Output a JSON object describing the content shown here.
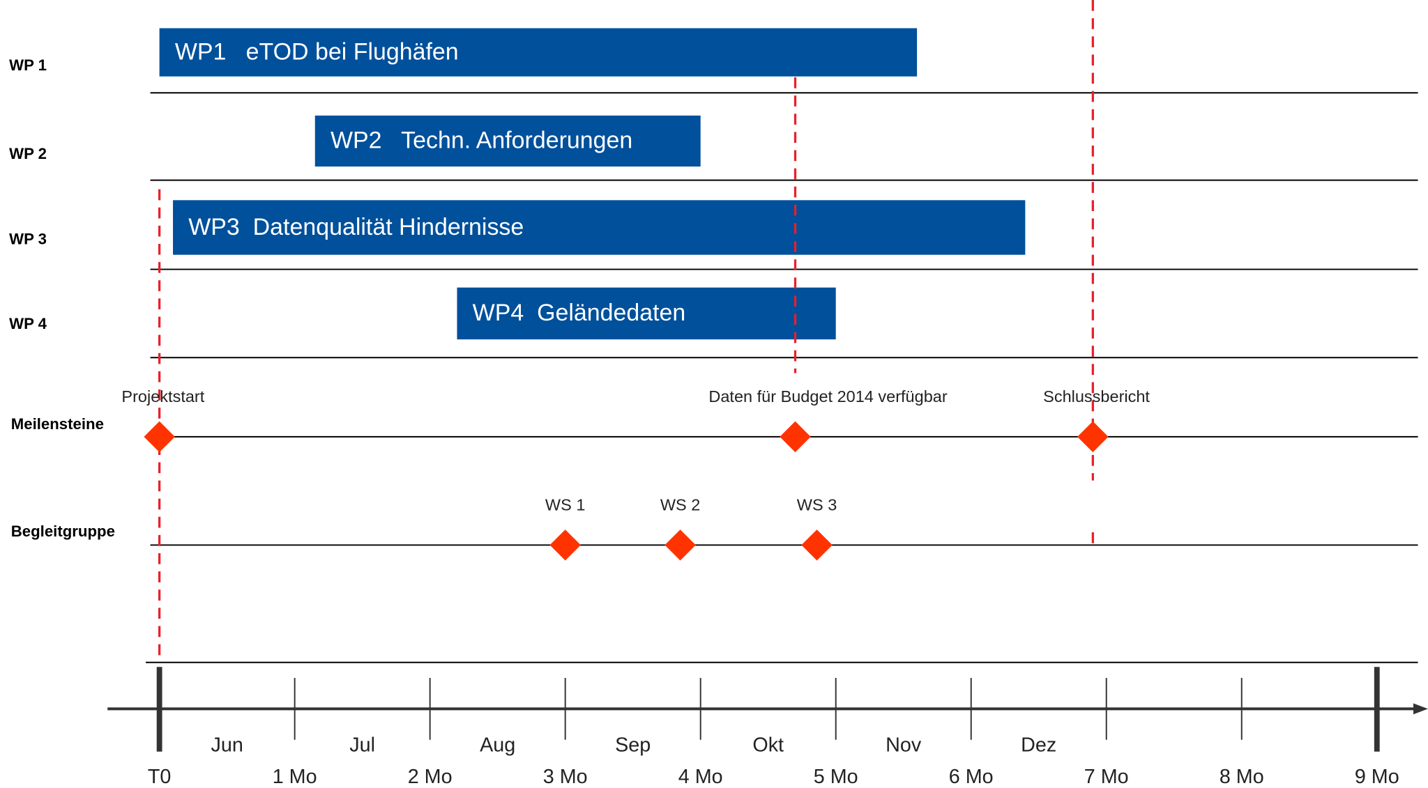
{
  "chart_data": {
    "type": "gantt",
    "xlim": [
      0,
      9
    ],
    "xticks": [
      {
        "value": 0,
        "label": "T0"
      },
      {
        "value": 1,
        "label": "1 Mo"
      },
      {
        "value": 2,
        "label": "2 Mo"
      },
      {
        "value": 3,
        "label": "3 Mo"
      },
      {
        "value": 4,
        "label": "4 Mo"
      },
      {
        "value": 5,
        "label": "5 Mo"
      },
      {
        "value": 6,
        "label": "6 Mo"
      },
      {
        "value": 7,
        "label": "7 Mo"
      },
      {
        "value": 8,
        "label": "8 Mo"
      },
      {
        "value": 9,
        "label": "9 Mo"
      }
    ],
    "months": [
      "Jun",
      "Jul",
      "Aug",
      "Sep",
      "Okt",
      "Nov",
      "Dez"
    ],
    "color": "#00509b",
    "marker_color": "#ff3300",
    "tasks": [
      {
        "row": "WP 1",
        "label": "WP1   eTOD bei Flughäfen",
        "start": 0,
        "end": 5.6
      },
      {
        "row": "WP 2",
        "label": "WP2   Techn. Anforderungen",
        "start": 1.15,
        "end": 4.0
      },
      {
        "row": "WP 3",
        "label": "WP3  Datenqualität Hindernisse",
        "start": 0.1,
        "end": 6.4
      },
      {
        "row": "WP 4",
        "label": "WP4  Geländedaten",
        "start": 2.2,
        "end": 5.0
      }
    ],
    "milestones": {
      "row": "Meilensteine",
      "items": [
        {
          "label": "Projektstart",
          "x": 0
        },
        {
          "label": "Daten für Budget 2014 verfügbar",
          "x": 4.7
        },
        {
          "label": "Schlussbericht",
          "x": 6.9
        }
      ]
    },
    "workshops": {
      "row": "Begleitgruppe",
      "items": [
        {
          "label": "WS 1",
          "x": 3.0
        },
        {
          "label": "WS 2",
          "x": 3.85
        },
        {
          "label": "WS 3",
          "x": 4.86
        }
      ]
    }
  }
}
